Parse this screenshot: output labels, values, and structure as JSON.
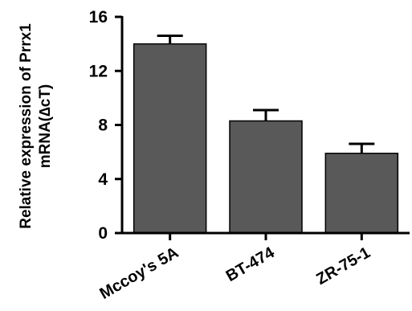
{
  "chart_data": {
    "type": "bar",
    "categories": [
      "Mccoy's 5A",
      "BT-474",
      "ZR-75-1"
    ],
    "values": [
      14.0,
      8.3,
      5.9
    ],
    "errors": [
      0.6,
      0.8,
      0.7
    ],
    "ylabel_line1": "Relative expression of Prrx1",
    "ylabel_line2": "mRNA(∆cT)",
    "xlabel": "",
    "ylim": [
      0,
      16
    ],
    "yticks": [
      "0",
      "4",
      "8",
      "12",
      "16"
    ],
    "bar_color": "#595959",
    "grid": false,
    "legend": "none"
  }
}
